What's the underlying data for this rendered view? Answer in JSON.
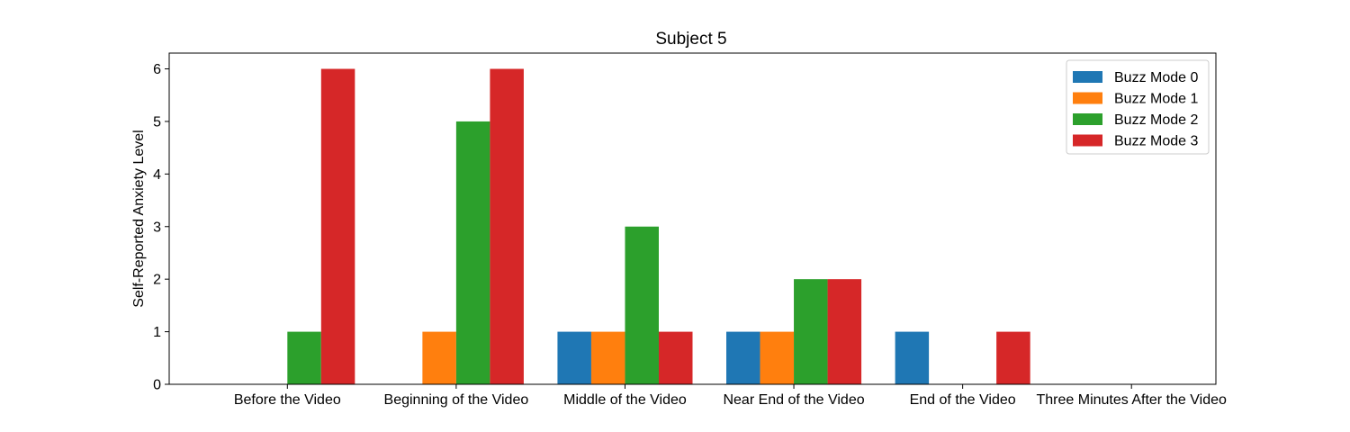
{
  "chart_data": {
    "type": "bar",
    "title": "Subject 5",
    "xlabel": "",
    "ylabel": "Self-Reported Anxiety Level",
    "ylim": [
      0,
      6.3
    ],
    "yticks": [
      0,
      1,
      2,
      3,
      4,
      5,
      6
    ],
    "grid": false,
    "legend_position": "top-right",
    "categories": [
      "Before the Video",
      "Beginning of the Video",
      "Middle of the Video",
      "Near End of the Video",
      "End of the Video",
      "Three Minutes After the Video"
    ],
    "series": [
      {
        "name": "Buzz Mode 0",
        "color": "#1f77b4",
        "values": [
          0,
          0,
          1,
          1,
          1,
          0
        ]
      },
      {
        "name": "Buzz Mode 1",
        "color": "#ff7f0e",
        "values": [
          0,
          1,
          1,
          1,
          0,
          0
        ]
      },
      {
        "name": "Buzz Mode 2",
        "color": "#2ca02c",
        "values": [
          1,
          5,
          3,
          2,
          0,
          0
        ]
      },
      {
        "name": "Buzz Mode 3",
        "color": "#d62728",
        "values": [
          6,
          6,
          1,
          2,
          1,
          0
        ]
      }
    ]
  }
}
